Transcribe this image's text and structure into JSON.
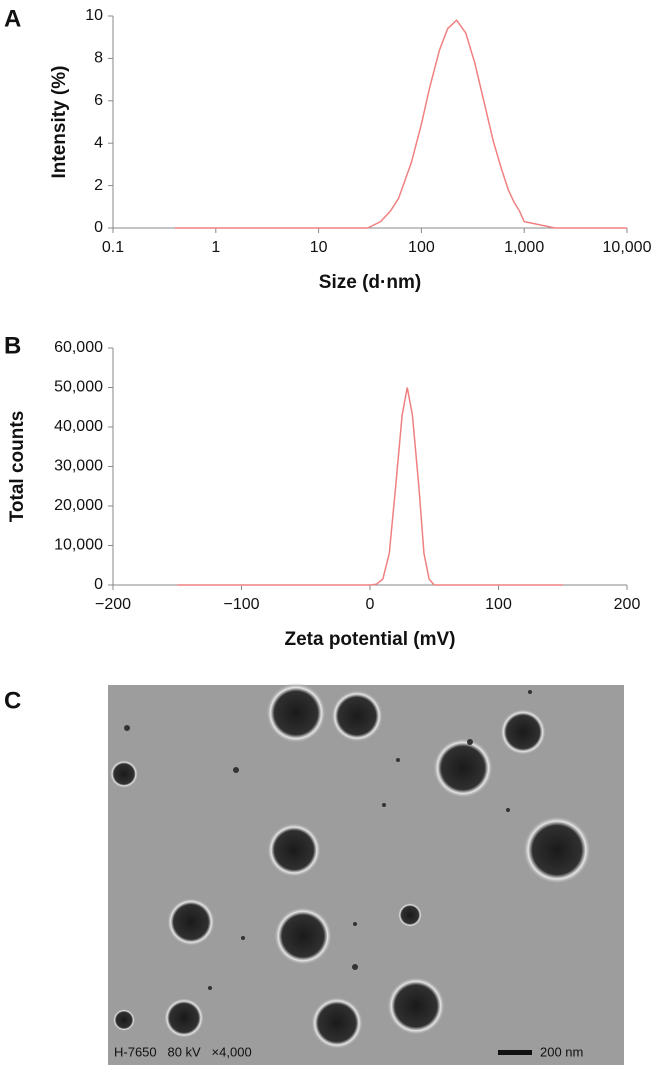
{
  "chart_data": [
    {
      "type": "line",
      "panel_label": "A",
      "xlabel": "Size (d·nm)",
      "ylabel": "Intensity (%)",
      "xscale": "log",
      "xlim": [
        0.1,
        10000
      ],
      "xticks": [
        0.1,
        1,
        10,
        100,
        {
          "value": 1000,
          "label": "1,000"
        },
        {
          "value": 10000,
          "label": "10,000"
        }
      ],
      "ylim": [
        0,
        10
      ],
      "yticks": [
        0,
        2,
        4,
        6,
        8,
        10
      ],
      "color": "#f08080",
      "x": [
        0.4,
        30,
        40,
        50,
        60,
        80,
        100,
        120,
        150,
        180,
        220,
        270,
        330,
        400,
        500,
        600,
        700,
        800,
        900,
        1000,
        2000,
        10000
      ],
      "values": [
        0,
        0,
        0.3,
        0.8,
        1.4,
        3.1,
        4.9,
        6.6,
        8.4,
        9.4,
        9.8,
        9.2,
        7.8,
        6.1,
        4.1,
        2.8,
        1.8,
        1.2,
        0.8,
        0.3,
        0,
        0
      ]
    },
    {
      "type": "line",
      "panel_label": "B",
      "xlabel": "Zeta potential (mV)",
      "ylabel": "Total counts",
      "xlim": [
        -200,
        200
      ],
      "xticks": [
        {
          "value": -200,
          "label": "−200"
        },
        {
          "value": -100,
          "label": "−100"
        },
        0,
        100,
        200
      ],
      "ylim": [
        0,
        60000
      ],
      "yticks": [
        0,
        {
          "value": 10000,
          "label": "10,000"
        },
        {
          "value": 20000,
          "label": "20,000"
        },
        {
          "value": 30000,
          "label": "30,000"
        },
        {
          "value": 40000,
          "label": "40,000"
        },
        {
          "value": 50000,
          "label": "50,000"
        },
        {
          "value": 60000,
          "label": "60,000"
        }
      ],
      "color": "#f08080",
      "x": [
        -150,
        0,
        5,
        10,
        15,
        20,
        25,
        29,
        33,
        38,
        42,
        46,
        50,
        150
      ],
      "values": [
        0,
        0,
        200,
        1500,
        8000,
        25000,
        43000,
        50000,
        43000,
        25000,
        8000,
        1500,
        0,
        0
      ]
    }
  ],
  "image": {
    "panel_label": "C",
    "caption": "H-7650   80 kV   ×4,000",
    "scale_bar": "200 nm"
  }
}
